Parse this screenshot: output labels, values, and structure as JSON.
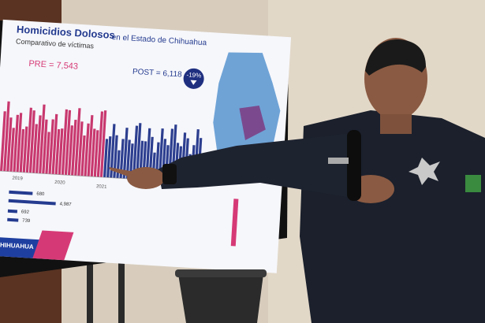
{
  "screen": {
    "title": "Homicidios Dolosos",
    "title_suffix": "en el Estado de Chihuahua",
    "subtitle": "Comparativo de víctimas",
    "pre": "PRE = 7,543",
    "post": "POST = 6,118",
    "change": "-19%",
    "years": [
      "2019",
      "2020",
      "2021"
    ],
    "legend_numbers": [
      "680",
      "4,987",
      "692",
      "739"
    ],
    "logo": "CHIHUAHUA"
  }
}
